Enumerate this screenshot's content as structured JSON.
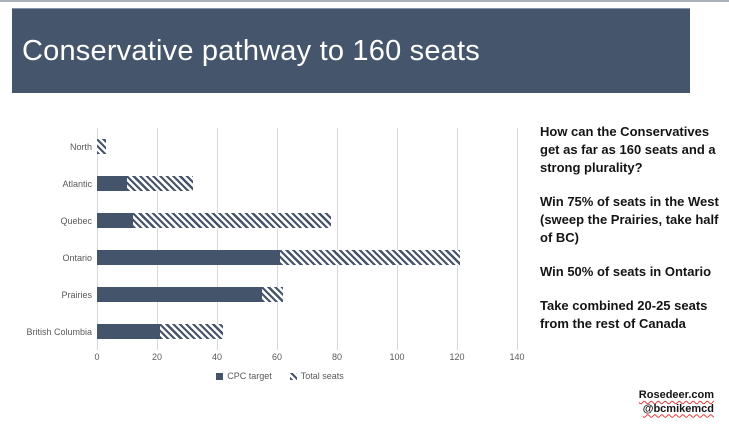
{
  "slide": {
    "title": "Conservative pathway to 160 seats"
  },
  "theme": {
    "banner_color": "#45556b",
    "bar_color": "#44546a",
    "hatch_color": "#44546a",
    "grid_color": "#d6dadf",
    "axis_label_color": "#595959",
    "credit_underline_color": "#e23d3d"
  },
  "chart_data": {
    "type": "bar",
    "orientation": "horizontal",
    "title": "",
    "xlabel": "",
    "ylabel": "",
    "categories": [
      "North",
      "Atlantic",
      "Quebec",
      "Ontario",
      "Prairies",
      "British Columbia"
    ],
    "series": [
      {
        "name": "CPC target",
        "style": "solid",
        "color": "#44546a",
        "values": [
          0,
          10,
          12,
          61,
          55,
          21
        ]
      },
      {
        "name": "Total seats",
        "style": "hatched",
        "color": "#44546a",
        "values": [
          3,
          32,
          78,
          121,
          62,
          42
        ]
      }
    ],
    "xlim": [
      0,
      140
    ],
    "x_ticks": [
      0,
      20,
      40,
      60,
      80,
      100,
      120,
      140
    ],
    "grid": true,
    "legend_position": "bottom"
  },
  "notes": {
    "paragraphs": [
      "How can the Conservatives get as far as 160 seats and a strong plurality?",
      "Win 75% of seats in the West (sweep the Prairies, take half of BC)",
      "Win 50% of seats in Ontario",
      "Take combined 20-25 seats from the rest of Canada"
    ]
  },
  "credits": {
    "line1": "Rosedeer.com",
    "line2": "@bcmikemcd"
  }
}
